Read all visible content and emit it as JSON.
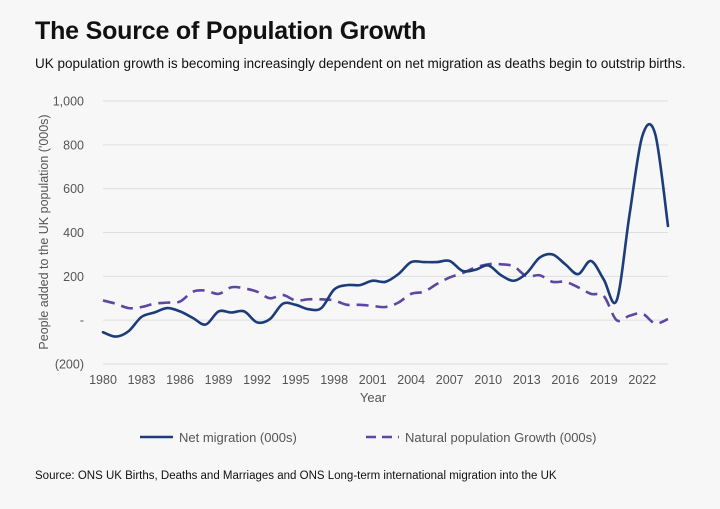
{
  "title": "The Source of Population Growth",
  "subtitle": "UK population growth is becoming increasingly dependent on net migration as deaths begin to outstrip births.",
  "source": "Source: ONS UK Births, Deaths and Marriages and ONS Long-term international migration into the UK",
  "colors": {
    "net_migration": "#1c3d7a",
    "natural_growth": "#5d47a0",
    "grid": "#dedede",
    "axis_text": "#555555"
  },
  "chart_data": {
    "type": "line",
    "xlabel": "Year",
    "ylabel": "People added to the UK population ('000s)",
    "xlim": [
      1980,
      2024
    ],
    "ylim": [
      -200,
      1000
    ],
    "x_ticks": [
      1980,
      1983,
      1986,
      1989,
      1992,
      1995,
      1998,
      2001,
      2004,
      2007,
      2010,
      2013,
      2016,
      2019,
      2022
    ],
    "y_ticks": [
      {
        "value": -200,
        "label": "(200)"
      },
      {
        "value": 0,
        "label": "-"
      },
      {
        "value": 200,
        "label": "200"
      },
      {
        "value": 400,
        "label": "400"
      },
      {
        "value": 600,
        "label": "600"
      },
      {
        "value": 800,
        "label": "800"
      },
      {
        "value": 1000,
        "label": "1,000"
      }
    ],
    "grid": true,
    "legend_position": "bottom",
    "x": [
      1980,
      1981,
      1982,
      1983,
      1984,
      1985,
      1986,
      1987,
      1988,
      1989,
      1990,
      1991,
      1992,
      1993,
      1994,
      1995,
      1996,
      1997,
      1998,
      1999,
      2000,
      2001,
      2002,
      2003,
      2004,
      2005,
      2006,
      2007,
      2008,
      2009,
      2010,
      2011,
      2012,
      2013,
      2014,
      2015,
      2016,
      2017,
      2018,
      2019,
      2020,
      2021,
      2022,
      2023,
      2024
    ],
    "series": [
      {
        "name": "Net migration (000s)",
        "style": "solid",
        "values": [
          -55,
          -75,
          -50,
          15,
          35,
          55,
          40,
          10,
          -20,
          40,
          35,
          40,
          -10,
          5,
          75,
          70,
          50,
          55,
          140,
          160,
          160,
          180,
          175,
          210,
          265,
          265,
          265,
          270,
          225,
          230,
          250,
          205,
          180,
          215,
          285,
          300,
          255,
          210,
          270,
          185,
          90,
          480,
          840,
          850,
          430
        ]
      },
      {
        "name": "Natural population Growth (000s)",
        "style": "dashed",
        "values": [
          90,
          75,
          55,
          60,
          75,
          80,
          85,
          130,
          135,
          120,
          150,
          145,
          130,
          100,
          115,
          90,
          95,
          95,
          90,
          70,
          70,
          65,
          60,
          80,
          120,
          130,
          165,
          195,
          215,
          240,
          255,
          255,
          245,
          200,
          205,
          175,
          175,
          150,
          120,
          110,
          0,
          20,
          30,
          -15,
          5
        ]
      }
    ]
  }
}
